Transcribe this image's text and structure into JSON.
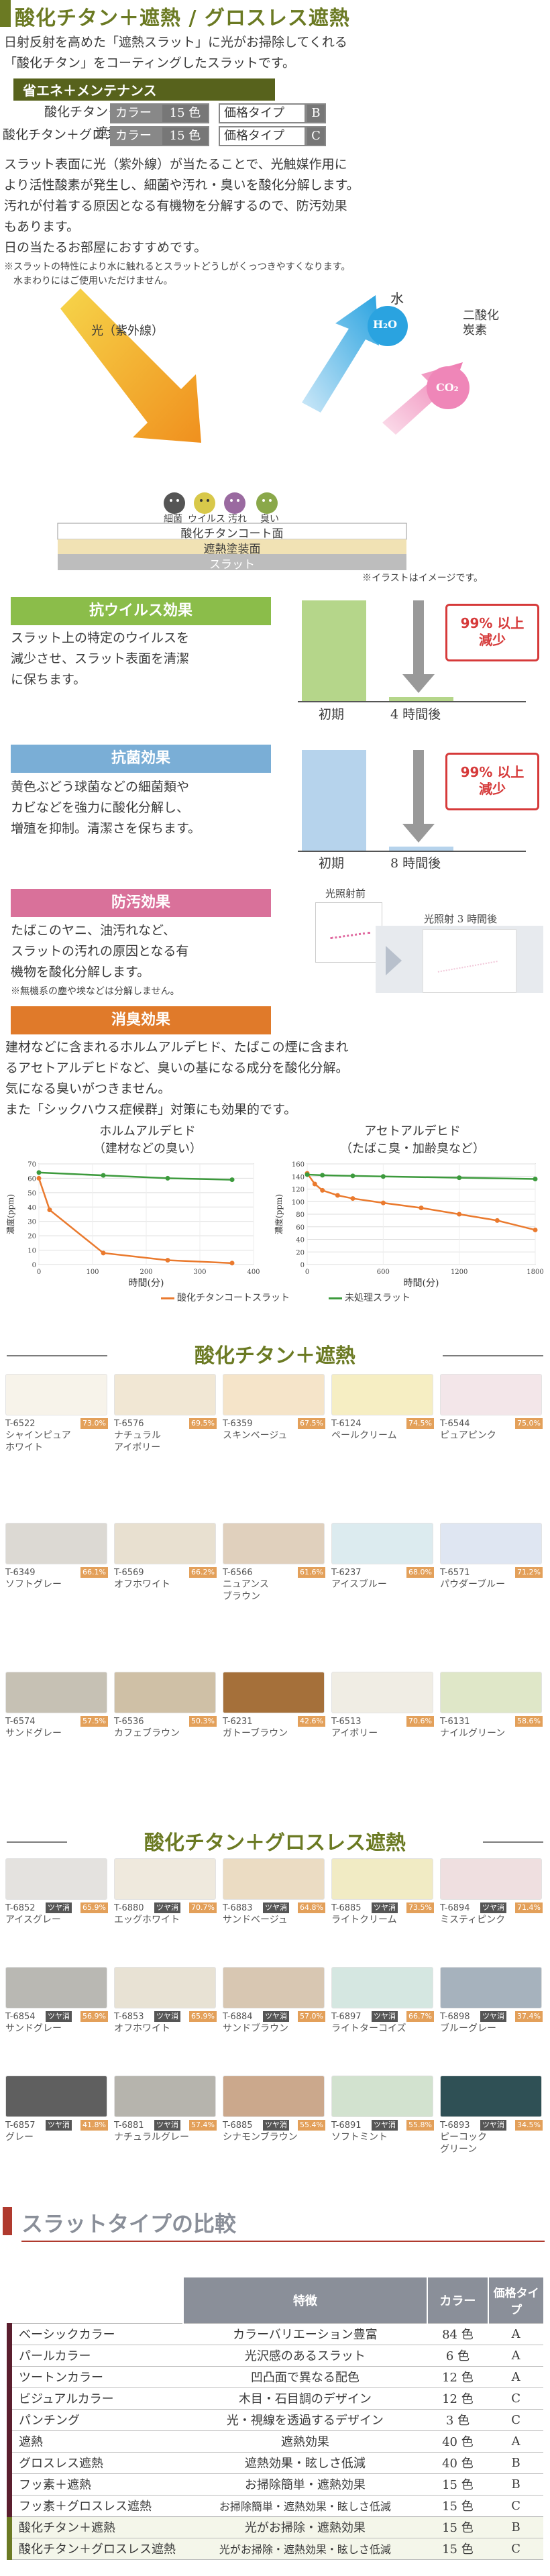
{
  "header": {
    "title": "酸化チタン＋遮熱 / グロスレス遮熱"
  },
  "intro": [
    "日射反射を高めた「遮熱スラット」に光がお掃除してくれる",
    "「酸化チタン」をコーティングしたスラットです。"
  ],
  "eco_label": "省エネ＋メンテナンス",
  "products": [
    {
      "name": "酸化チタン＋遮熱",
      "color_key": "カラー",
      "color_val": "15 色",
      "price_key": "価格タイプ",
      "price_val": "B"
    },
    {
      "name": "酸化チタン＋グロスレス遮熱",
      "color_key": "カラー",
      "color_val": "15 色",
      "price_key": "価格タイプ",
      "price_val": "C"
    }
  ],
  "desc": [
    "スラット表面に光（紫外線）が当たることで、光触媒作用に",
    "より活性酸素が発生し、細菌や汚れ・臭いを酸化分解します。",
    "汚れが付着する原因となる有機物を分解するので、防汚効果",
    "もあります。",
    "日の当たるお部屋におすすめです。"
  ],
  "note": [
    "※スラットの特性により水に触れるとスラットどうしがくっつきやすくなります。",
    "　水まわりにはご使用いただけません。"
  ],
  "diagram": {
    "light": "光（紫外線）",
    "water": "水",
    "h2o": "H₂O",
    "co2_label": "二酸化炭素",
    "co2": "CO₂",
    "germs": [
      "細菌",
      "ウイルス",
      "汚れ",
      "臭い"
    ],
    "layers": [
      "酸化チタンコート面",
      "遮熱塗装面",
      "スラット"
    ],
    "note": "※イラストはイメージです。"
  },
  "effects": [
    {
      "title": "抗ウイルス効果",
      "color": "#8bbd4a",
      "text": [
        "スラット上の特定のウイルスを",
        "減少させ、スラット表面を清潔",
        "に保ちます。"
      ],
      "callout": [
        "99% 以上",
        "減少"
      ],
      "x_labels": [
        "初期",
        "4 時間後"
      ],
      "values": [
        100,
        1
      ]
    },
    {
      "title": "抗菌効果",
      "color": "#7aaed6",
      "text": [
        "黄色ぶどう球菌などの細菌類や",
        "カビなどを強力に酸化分解し、",
        "増殖を抑制。清潔さを保ちます。"
      ],
      "callout": [
        "99% 以上",
        "減少"
      ],
      "x_labels": [
        "初期",
        "8 時間後"
      ],
      "values": [
        100,
        1
      ]
    },
    {
      "title": "防汚効果",
      "color": "#d9719a",
      "text": [
        "たばこのヤニ、油汚れなど、",
        "スラットの汚れの原因となる有",
        "機物を酸化分解します。"
      ],
      "note": "※無機系の塵や埃などは分解しません。",
      "before": "光照射前",
      "after": "光照射 3 時間後"
    },
    {
      "title": "消臭効果",
      "color": "#e07a2a",
      "text": [
        "建材などに含まれるホルムアルデヒド、たばこの煙に含まれ",
        "るアセトアルデヒドなど、臭いの基になる成分を酸化分解。",
        "気になる臭いがつきません。",
        "また「シックハウス症候群」対策にも効果的です。"
      ]
    }
  ],
  "chart_data": [
    {
      "type": "line",
      "title": "ホルムアルデヒド",
      "subtitle": "（建材などの臭い）",
      "xlabel": "時間(分)",
      "ylabel": "濃度(ppm)",
      "xlim": [
        0,
        400
      ],
      "ylim": [
        0,
        70
      ],
      "xticks": [
        0,
        100,
        200,
        300,
        400
      ],
      "yticks": [
        0,
        10,
        20,
        30,
        40,
        50,
        60,
        70
      ],
      "series": [
        {
          "name": "酸化チタンコートスラット",
          "color": "#ea7a2e",
          "x": [
            0,
            20,
            120,
            240,
            360
          ],
          "y": [
            60,
            38,
            8,
            3,
            1
          ]
        },
        {
          "name": "未処理スラット",
          "color": "#3c9a3c",
          "x": [
            0,
            120,
            240,
            360
          ],
          "y": [
            64,
            62,
            60,
            59
          ]
        }
      ]
    },
    {
      "type": "line",
      "title": "アセトアルデヒド",
      "subtitle": "（たばこ臭・加齢臭など）",
      "xlabel": "時間(分)",
      "ylabel": "濃度(ppm)",
      "xlim": [
        0,
        1800
      ],
      "ylim": [
        0,
        160
      ],
      "xticks": [
        0,
        600,
        1200,
        1800
      ],
      "yticks": [
        0,
        20,
        40,
        60,
        80,
        100,
        120,
        140,
        160
      ],
      "series": [
        {
          "name": "酸化チタンコートスラット",
          "color": "#ea7a2e",
          "x": [
            0,
            60,
            120,
            240,
            360,
            600,
            900,
            1200,
            1500,
            1800
          ],
          "y": [
            145,
            128,
            118,
            110,
            105,
            98,
            90,
            80,
            70,
            55
          ]
        },
        {
          "name": "未処理スラット",
          "color": "#3c9a3c",
          "x": [
            0,
            120,
            360,
            600,
            1200,
            1800
          ],
          "y": [
            143,
            142,
            141,
            140,
            138,
            136
          ]
        }
      ]
    }
  ],
  "legend": [
    "酸化チタンコートスラット",
    "未処理スラット"
  ],
  "section_a_title": "酸化チタン＋遮熱",
  "colors_a": [
    {
      "code": "T-6522",
      "pct": "73.0%",
      "name": [
        "シャインピュア",
        "ホワイト"
      ],
      "hex": "#f7f3ea"
    },
    {
      "code": "T-6576",
      "pct": "69.5%",
      "name": [
        "ナチュラル",
        "アイボリー"
      ],
      "hex": "#f1e7d4"
    },
    {
      "code": "T-6359",
      "pct": "67.5%",
      "name": [
        "スキンベージュ"
      ],
      "hex": "#f5e4c9"
    },
    {
      "code": "T-6124",
      "pct": "74.5%",
      "name": [
        "ペールクリーム"
      ],
      "hex": "#f6eec3"
    },
    {
      "code": "T-6544",
      "pct": "75.0%",
      "name": [
        "ピュアピンク"
      ],
      "hex": "#f3e6e9"
    },
    {
      "code": "T-6349",
      "pct": "66.1%",
      "name": [
        "ソフトグレー"
      ],
      "hex": "#dcd9d3"
    },
    {
      "code": "T-6569",
      "pct": "66.2%",
      "name": [
        "オフホワイト"
      ],
      "hex": "#e8e0d0"
    },
    {
      "code": "T-6566",
      "pct": "61.6%",
      "name": [
        "ニュアンス",
        "ブラウン"
      ],
      "hex": "#e0d0bd"
    },
    {
      "code": "T-6237",
      "pct": "68.0%",
      "name": [
        "アイスブルー"
      ],
      "hex": "#dcebef"
    },
    {
      "code": "T-6571",
      "pct": "71.2%",
      "name": [
        "パウダーブルー"
      ],
      "hex": "#dfe6f2"
    },
    {
      "code": "T-6574",
      "pct": "57.5%",
      "name": [
        "サンドグレー"
      ],
      "hex": "#c6c1b4"
    },
    {
      "code": "T-6536",
      "pct": "50.3%",
      "name": [
        "カフェブラウン"
      ],
      "hex": "#cfc0a6"
    },
    {
      "code": "T-6231",
      "pct": "42.6%",
      "name": [
        "ガトーブラウン"
      ],
      "hex": "#a5703a"
    },
    {
      "code": "T-6513",
      "pct": "70.6%",
      "name": [
        "アイボリー"
      ],
      "hex": "#f0ede4"
    },
    {
      "code": "T-6131",
      "pct": "58.6%",
      "name": [
        "ナイルグリーン"
      ],
      "hex": "#dfe7c8"
    }
  ],
  "section_b_title": "酸化チタン＋グロスレス遮熱",
  "tsuya": "ツヤ消",
  "colors_b": [
    {
      "code": "T-6852",
      "pct": "65.9%",
      "name": [
        "アイスグレー"
      ],
      "hex": "#e4e2df"
    },
    {
      "code": "T-6880",
      "pct": "70.7%",
      "name": [
        "エッグホワイト"
      ],
      "hex": "#efe9dd"
    },
    {
      "code": "T-6883",
      "pct": "64.8%",
      "name": [
        "サンドベージュ"
      ],
      "hex": "#ebdcc3"
    },
    {
      "code": "T-6885",
      "pct": "73.5%",
      "name": [
        "ライトクリーム"
      ],
      "hex": "#f1ebc4"
    },
    {
      "code": "T-6894",
      "pct": "71.4%",
      "name": [
        "ミスティピンク"
      ],
      "hex": "#efdfe0"
    },
    {
      "code": "T-6854",
      "pct": "56.9%",
      "name": [
        "サンドグレー"
      ],
      "hex": "#b9b8b3"
    },
    {
      "code": "T-6853",
      "pct": "65.9%",
      "name": [
        "オフホワイト"
      ],
      "hex": "#e8e2d4"
    },
    {
      "code": "T-6884",
      "pct": "57.0%",
      "name": [
        "サンドブラウン"
      ],
      "hex": "#d8c7b2"
    },
    {
      "code": "T-6897",
      "pct": "66.7%",
      "name": [
        "ライトターコイズ"
      ],
      "hex": "#d5e7e1"
    },
    {
      "code": "T-6898",
      "pct": "37.4%",
      "name": [
        "ブルーグレー"
      ],
      "hex": "#a6b2bd"
    },
    {
      "code": "T-6857",
      "pct": "41.8%",
      "name": [
        "グレー"
      ],
      "hex": "#5f5f5f"
    },
    {
      "code": "T-6881",
      "pct": "57.4%",
      "name": [
        "ナチュラルグレー"
      ],
      "hex": "#b6b4ad"
    },
    {
      "code": "T-6885",
      "pct": "55.4%",
      "name": [
        "シナモンブラウン"
      ],
      "hex": "#cba88c"
    },
    {
      "code": "T-6891",
      "pct": "55.8%",
      "name": [
        "ソフトミント"
      ],
      "hex": "#d2e2cf"
    },
    {
      "code": "T-6893",
      "pct": "34.5%",
      "name": [
        "ピーコック",
        "グリーン"
      ],
      "hex": "#2f5055"
    }
  ],
  "compare": {
    "title": "スラットタイプの比較",
    "headers": [
      "特徴",
      "カラー",
      "価格タイプ"
    ],
    "rows": [
      {
        "name": "ベーシックカラー",
        "feature": "カラーバリエーション豊富",
        "color": "84 色",
        "price": "A"
      },
      {
        "name": "パールカラー",
        "feature": "光沢感のあるスラット",
        "color": "6 色",
        "price": "A"
      },
      {
        "name": "ツートンカラー",
        "feature": "凹凸面で異なる配色",
        "color": "12 色",
        "price": "A"
      },
      {
        "name": "ビジュアルカラー",
        "feature": "木目・石目調のデザイン",
        "color": "12 色",
        "price": "C"
      },
      {
        "name": "パンチング",
        "feature": "光・視線を透過するデザイン",
        "color": "3 色",
        "price": "C"
      },
      {
        "name": "遮熱",
        "feature": "遮熱効果",
        "color": "40 色",
        "price": "A"
      },
      {
        "name": "グロスレス遮熱",
        "feature": "遮熱効果・眩しさ低減",
        "color": "40 色",
        "price": "B"
      },
      {
        "name": "フッ素＋遮熱",
        "feature": "お掃除簡単・遮熱効果",
        "color": "15 色",
        "price": "B"
      },
      {
        "name": "フッ素＋グロスレス遮熱",
        "feature": "お掃除簡単・遮熱効果・眩しさ低減",
        "color": "15 色",
        "price": "C"
      },
      {
        "name": "酸化チタン＋遮熱",
        "feature": "光がお掃除・遮熱効果",
        "color": "15 色",
        "price": "B"
      },
      {
        "name": "酸化チタン＋グロスレス遮熱",
        "feature": "光がお掃除・遮熱効果・眩しさ低減",
        "color": "15 色",
        "price": "C"
      }
    ]
  }
}
